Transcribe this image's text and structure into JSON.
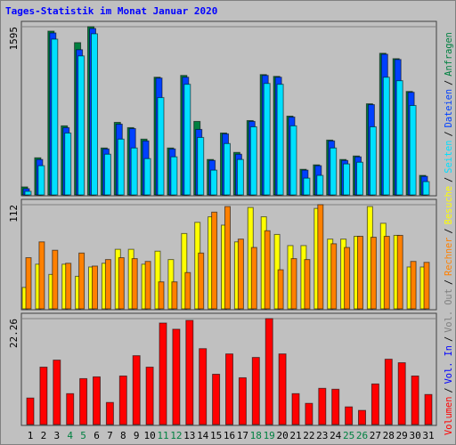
{
  "chart_data": [
    {
      "type": "bar",
      "title": "Tages-Statistik im Monat Januar 2020",
      "ylim": [
        0,
        1595
      ],
      "yticks": [
        1595
      ],
      "grid": true,
      "series": [
        {
          "name": "Anfragen",
          "color": "#008040",
          "values": [
            76,
            352,
            1553,
            655,
            1444,
            1595,
            445,
            688,
            638,
            529,
            1116,
            445,
            1133,
            697,
            336,
            587,
            403,
            705,
            1141,
            1124,
            747,
            243,
            285,
            520,
            336,
            369,
            864,
            1343,
            1292,
            981,
            185
          ]
        },
        {
          "name": "Dateien",
          "color": "#0040ff",
          "values": [
            59,
            336,
            1536,
            638,
            1377,
            1578,
            436,
            671,
            629,
            512,
            1108,
            436,
            1116,
            621,
            327,
            579,
            386,
            697,
            1133,
            1116,
            738,
            235,
            277,
            512,
            327,
            361,
            856,
            1334,
            1284,
            973,
            176
          ]
        },
        {
          "name": "Seiten",
          "color": "#00e0ff",
          "values": [
            34,
            277,
            1477,
            587,
            1318,
            1528,
            386,
            529,
            445,
            344,
            923,
            361,
            1049,
            545,
            235,
            487,
            336,
            646,
            1057,
            1049,
            655,
            159,
            185,
            445,
            294,
            310,
            646,
            1116,
            1083,
            848,
            126
          ]
        }
      ]
    },
    {
      "type": "bar",
      "ylim": [
        0,
        112
      ],
      "yticks": [
        112
      ],
      "grid": true,
      "series": [
        {
          "name": "Besuche",
          "color": "#ffff00",
          "values": [
            23,
            48,
            37,
            48,
            35,
            45,
            49,
            64,
            64,
            48,
            62,
            53,
            81,
            93,
            99,
            90,
            72,
            109,
            99,
            80,
            68,
            68,
            108,
            75,
            75,
            78,
            110,
            92,
            79,
            45,
            45
          ]
        },
        {
          "name": "Rechner",
          "color": "#ff8000",
          "values": [
            55,
            72,
            63,
            49,
            60,
            46,
            53,
            55,
            54,
            51,
            29,
            29,
            39,
            60,
            104,
            110,
            75,
            66,
            84,
            42,
            54,
            53,
            112,
            70,
            66,
            78,
            77,
            78,
            79,
            51,
            50
          ]
        }
      ]
    },
    {
      "type": "bar",
      "ylim": [
        0,
        22.26
      ],
      "yticks": [
        22.26
      ],
      "grid": true,
      "categories": [
        "1",
        "2",
        "3",
        "4",
        "5",
        "6",
        "7",
        "8",
        "9",
        "10",
        "11",
        "12",
        "13",
        "14",
        "15",
        "16",
        "17",
        "18",
        "19",
        "20",
        "21",
        "22",
        "23",
        "24",
        "25",
        "26",
        "27",
        "28",
        "29",
        "30",
        "31"
      ],
      "category_colors": [
        "#000000",
        "#000000",
        "#000000",
        "#008040",
        "#008040",
        "#000000",
        "#000000",
        "#000000",
        "#000000",
        "#000000",
        "#008040",
        "#008040",
        "#000000",
        "#000000",
        "#000000",
        "#000000",
        "#000000",
        "#008040",
        "#008040",
        "#000000",
        "#000000",
        "#000000",
        "#000000",
        "#000000",
        "#008040",
        "#008040",
        "#000000",
        "#000000",
        "#000000",
        "#000000",
        "#000000"
      ],
      "series": [
        {
          "name": "Volumen",
          "color": "#ff0000",
          "values": [
            5.57,
            12.06,
            13.54,
            6.49,
            9.65,
            10.02,
            4.64,
            10.2,
            14.47,
            12.06,
            21.33,
            20.03,
            21.89,
            15.95,
            10.57,
            14.84,
            9.83,
            14.1,
            22.26,
            14.84,
            6.49,
            4.45,
            7.61,
            7.42,
            3.71,
            2.97,
            8.53,
            13.73,
            12.99,
            10.2,
            6.31
          ]
        }
      ],
      "legend_extra": [
        {
          "name": "Vol. In",
          "color": "#0000ff"
        },
        {
          "name": "Vol. Out",
          "color": "#808080"
        }
      ],
      "legend_separator": "/"
    }
  ]
}
